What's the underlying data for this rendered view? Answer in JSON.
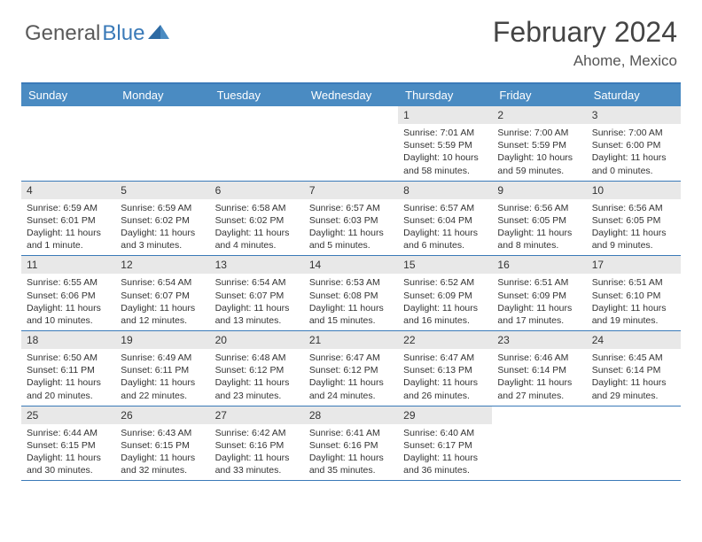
{
  "brand": {
    "part1": "General",
    "part2": "Blue"
  },
  "title": "February 2024",
  "location": "Ahome, Mexico",
  "colors": {
    "headerBlue": "#4a8bc2",
    "borderBlue": "#3a7ab8",
    "dayNumBg": "#e8e8e8",
    "text": "#333333"
  },
  "weekdays": [
    "Sunday",
    "Monday",
    "Tuesday",
    "Wednesday",
    "Thursday",
    "Friday",
    "Saturday"
  ],
  "weeks": [
    [
      {
        "empty": true
      },
      {
        "empty": true
      },
      {
        "empty": true
      },
      {
        "empty": true
      },
      {
        "num": "1",
        "sunrise": "Sunrise: 7:01 AM",
        "sunset": "Sunset: 5:59 PM",
        "daylight": "Daylight: 10 hours and 58 minutes."
      },
      {
        "num": "2",
        "sunrise": "Sunrise: 7:00 AM",
        "sunset": "Sunset: 5:59 PM",
        "daylight": "Daylight: 10 hours and 59 minutes."
      },
      {
        "num": "3",
        "sunrise": "Sunrise: 7:00 AM",
        "sunset": "Sunset: 6:00 PM",
        "daylight": "Daylight: 11 hours and 0 minutes."
      }
    ],
    [
      {
        "num": "4",
        "sunrise": "Sunrise: 6:59 AM",
        "sunset": "Sunset: 6:01 PM",
        "daylight": "Daylight: 11 hours and 1 minute."
      },
      {
        "num": "5",
        "sunrise": "Sunrise: 6:59 AM",
        "sunset": "Sunset: 6:02 PM",
        "daylight": "Daylight: 11 hours and 3 minutes."
      },
      {
        "num": "6",
        "sunrise": "Sunrise: 6:58 AM",
        "sunset": "Sunset: 6:02 PM",
        "daylight": "Daylight: 11 hours and 4 minutes."
      },
      {
        "num": "7",
        "sunrise": "Sunrise: 6:57 AM",
        "sunset": "Sunset: 6:03 PM",
        "daylight": "Daylight: 11 hours and 5 minutes."
      },
      {
        "num": "8",
        "sunrise": "Sunrise: 6:57 AM",
        "sunset": "Sunset: 6:04 PM",
        "daylight": "Daylight: 11 hours and 6 minutes."
      },
      {
        "num": "9",
        "sunrise": "Sunrise: 6:56 AM",
        "sunset": "Sunset: 6:05 PM",
        "daylight": "Daylight: 11 hours and 8 minutes."
      },
      {
        "num": "10",
        "sunrise": "Sunrise: 6:56 AM",
        "sunset": "Sunset: 6:05 PM",
        "daylight": "Daylight: 11 hours and 9 minutes."
      }
    ],
    [
      {
        "num": "11",
        "sunrise": "Sunrise: 6:55 AM",
        "sunset": "Sunset: 6:06 PM",
        "daylight": "Daylight: 11 hours and 10 minutes."
      },
      {
        "num": "12",
        "sunrise": "Sunrise: 6:54 AM",
        "sunset": "Sunset: 6:07 PM",
        "daylight": "Daylight: 11 hours and 12 minutes."
      },
      {
        "num": "13",
        "sunrise": "Sunrise: 6:54 AM",
        "sunset": "Sunset: 6:07 PM",
        "daylight": "Daylight: 11 hours and 13 minutes."
      },
      {
        "num": "14",
        "sunrise": "Sunrise: 6:53 AM",
        "sunset": "Sunset: 6:08 PM",
        "daylight": "Daylight: 11 hours and 15 minutes."
      },
      {
        "num": "15",
        "sunrise": "Sunrise: 6:52 AM",
        "sunset": "Sunset: 6:09 PM",
        "daylight": "Daylight: 11 hours and 16 minutes."
      },
      {
        "num": "16",
        "sunrise": "Sunrise: 6:51 AM",
        "sunset": "Sunset: 6:09 PM",
        "daylight": "Daylight: 11 hours and 17 minutes."
      },
      {
        "num": "17",
        "sunrise": "Sunrise: 6:51 AM",
        "sunset": "Sunset: 6:10 PM",
        "daylight": "Daylight: 11 hours and 19 minutes."
      }
    ],
    [
      {
        "num": "18",
        "sunrise": "Sunrise: 6:50 AM",
        "sunset": "Sunset: 6:11 PM",
        "daylight": "Daylight: 11 hours and 20 minutes."
      },
      {
        "num": "19",
        "sunrise": "Sunrise: 6:49 AM",
        "sunset": "Sunset: 6:11 PM",
        "daylight": "Daylight: 11 hours and 22 minutes."
      },
      {
        "num": "20",
        "sunrise": "Sunrise: 6:48 AM",
        "sunset": "Sunset: 6:12 PM",
        "daylight": "Daylight: 11 hours and 23 minutes."
      },
      {
        "num": "21",
        "sunrise": "Sunrise: 6:47 AM",
        "sunset": "Sunset: 6:12 PM",
        "daylight": "Daylight: 11 hours and 24 minutes."
      },
      {
        "num": "22",
        "sunrise": "Sunrise: 6:47 AM",
        "sunset": "Sunset: 6:13 PM",
        "daylight": "Daylight: 11 hours and 26 minutes."
      },
      {
        "num": "23",
        "sunrise": "Sunrise: 6:46 AM",
        "sunset": "Sunset: 6:14 PM",
        "daylight": "Daylight: 11 hours and 27 minutes."
      },
      {
        "num": "24",
        "sunrise": "Sunrise: 6:45 AM",
        "sunset": "Sunset: 6:14 PM",
        "daylight": "Daylight: 11 hours and 29 minutes."
      }
    ],
    [
      {
        "num": "25",
        "sunrise": "Sunrise: 6:44 AM",
        "sunset": "Sunset: 6:15 PM",
        "daylight": "Daylight: 11 hours and 30 minutes."
      },
      {
        "num": "26",
        "sunrise": "Sunrise: 6:43 AM",
        "sunset": "Sunset: 6:15 PM",
        "daylight": "Daylight: 11 hours and 32 minutes."
      },
      {
        "num": "27",
        "sunrise": "Sunrise: 6:42 AM",
        "sunset": "Sunset: 6:16 PM",
        "daylight": "Daylight: 11 hours and 33 minutes."
      },
      {
        "num": "28",
        "sunrise": "Sunrise: 6:41 AM",
        "sunset": "Sunset: 6:16 PM",
        "daylight": "Daylight: 11 hours and 35 minutes."
      },
      {
        "num": "29",
        "sunrise": "Sunrise: 6:40 AM",
        "sunset": "Sunset: 6:17 PM",
        "daylight": "Daylight: 11 hours and 36 minutes."
      },
      {
        "empty": true
      },
      {
        "empty": true
      }
    ]
  ]
}
